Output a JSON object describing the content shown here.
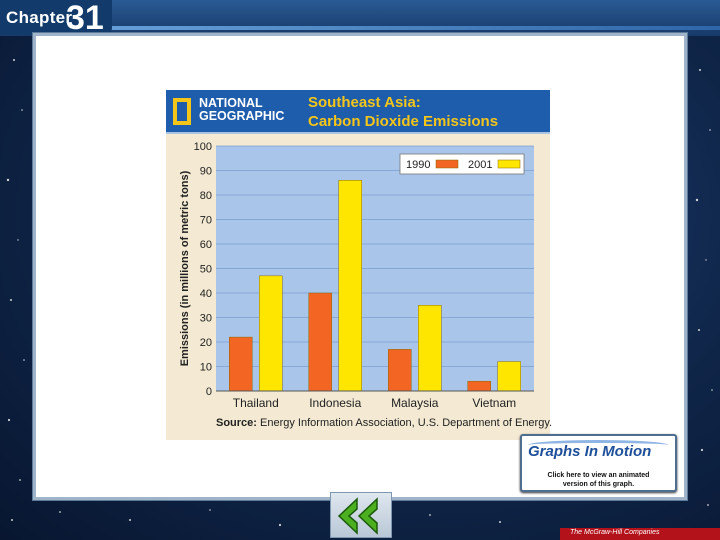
{
  "header": {
    "chapter_label": "Chapter",
    "chapter_number": "31"
  },
  "figure": {
    "publisher_line1": "NATIONAL",
    "publisher_line2": "GEOGRAPHIC",
    "title_line1": "Southeast Asia:",
    "title_line2": "Carbon Dioxide Emissions",
    "source_label": "Source:",
    "source_text": " Energy Information Association, U.S. Department of Energy."
  },
  "chart_data": {
    "type": "bar",
    "title": "Southeast Asia: Carbon Dioxide Emissions",
    "xlabel": "",
    "ylabel": "Emissions (in millions of metric tons)",
    "ylim": [
      0,
      100
    ],
    "yticks": [
      0,
      10,
      20,
      30,
      40,
      50,
      60,
      70,
      80,
      90,
      100
    ],
    "grid": true,
    "legend_position": "top-right",
    "categories": [
      "Thailand",
      "Indonesia",
      "Malaysia",
      "Vietnam"
    ],
    "series": [
      {
        "name": "1990",
        "color": "#f26522",
        "values": [
          22,
          40,
          17,
          4
        ]
      },
      {
        "name": "2001",
        "color": "#ffe600",
        "values": [
          47,
          86,
          35,
          12
        ]
      }
    ]
  },
  "graphs_in_motion": {
    "title": "Graphs In Motion",
    "subtitle_line1": "Click here to view an animated",
    "subtitle_line2": "version of this graph."
  },
  "footer": {
    "publisher": "The McGraw-Hill Companies"
  },
  "colors": {
    "banner": "#1d5dab",
    "banner_title": "#f5c518",
    "plot_background": "#a9c6ea",
    "figure_background": "#f4ead3"
  },
  "icons": {
    "back_button": "double-left-arrow-icon",
    "publisher_logo": "national-geographic-logo"
  }
}
